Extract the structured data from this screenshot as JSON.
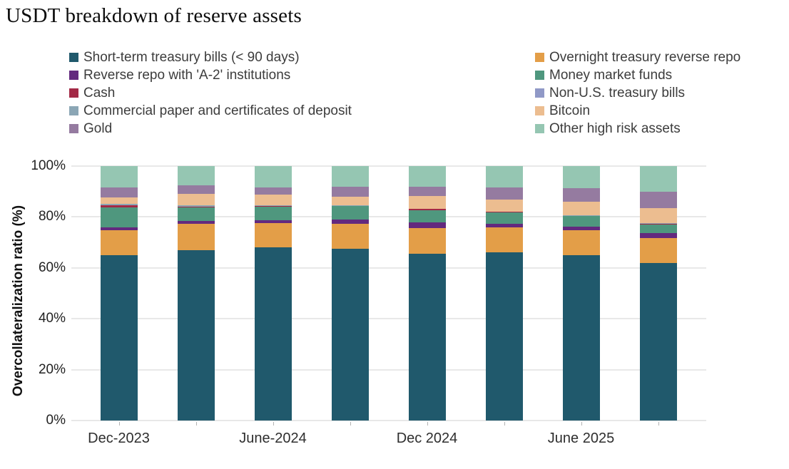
{
  "title": "USDT breakdown of reserve assets",
  "chart_data": {
    "type": "bar",
    "stacked": true,
    "title": "USDT breakdown of reserve assets",
    "xlabel": "",
    "ylabel": "Overcollateralization ratio (%)",
    "ylim": [
      0,
      100
    ],
    "yticks": [
      "0%",
      "20%",
      "40%",
      "60%",
      "80%",
      "100%"
    ],
    "grid": true,
    "legend_position": "top",
    "categories": [
      "Dec-2023",
      "",
      "June-2024",
      "",
      "Dec 2024",
      "",
      "June 2025",
      ""
    ],
    "visible_x_tick_labels": [
      "Dec-2023",
      "June-2024",
      "Dec 2024",
      "June 2025"
    ],
    "series": [
      {
        "name": "Short-term treasury bills (< 90 days)",
        "color": "#20596c",
        "values": [
          65.0,
          67.0,
          68.0,
          67.6,
          65.5,
          66.0,
          64.9,
          61.8
        ]
      },
      {
        "name": "Overnight treasury reverse repo",
        "color": "#e39e48",
        "values": [
          9.8,
          10.3,
          9.6,
          9.6,
          10.1,
          9.9,
          10.0,
          10.0
        ]
      },
      {
        "name": "Reverse repo with 'A-2' institutions",
        "color": "#63297e",
        "values": [
          1.1,
          1.0,
          1.2,
          1.8,
          2.3,
          1.3,
          1.2,
          1.9
        ]
      },
      {
        "name": "Money market funds",
        "color": "#4f977e",
        "values": [
          8.0,
          5.4,
          5.3,
          5.2,
          4.8,
          4.6,
          4.2,
          3.4
        ]
      },
      {
        "name": "Cash",
        "color": "#a32946",
        "values": [
          0.8,
          0.4,
          0.3,
          0.2,
          0.4,
          0.2,
          0.2,
          0.3
        ]
      },
      {
        "name": "Non-U.S. treasury bills",
        "color": "#9099c7",
        "values": [
          0,
          0,
          0,
          0,
          0,
          0,
          0,
          0
        ]
      },
      {
        "name": "Commercial paper and certificates of deposit",
        "color": "#8ba6b5",
        "values": [
          0.4,
          0.5,
          0.3,
          0.2,
          0,
          0.2,
          0.2,
          0.3
        ]
      },
      {
        "name": "Bitcoin",
        "color": "#ecbd90",
        "values": [
          2.5,
          4.5,
          4.0,
          3.3,
          5.1,
          4.7,
          5.4,
          5.8
        ]
      },
      {
        "name": "Gold",
        "color": "#957ba0",
        "values": [
          3.9,
          3.3,
          3.0,
          4.1,
          3.7,
          4.6,
          5.3,
          6.5
        ]
      },
      {
        "name": "Other high risk assets",
        "color": "#95c6b2",
        "values": [
          8.5,
          7.6,
          8.3,
          8.0,
          8.1,
          8.5,
          8.6,
          10.0
        ]
      }
    ],
    "colors": {
      "background": "#ffffff",
      "gridline": "#e8e8e8",
      "axis_text": "#222222",
      "legend_text": "#3c3c3c"
    }
  }
}
